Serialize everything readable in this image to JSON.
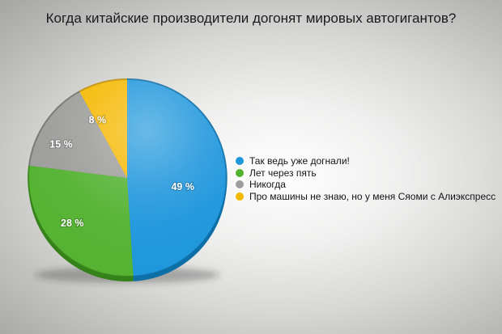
{
  "chart_data": {
    "type": "pie",
    "title": "Когда китайские производители догонят мировых автогигантов?",
    "unit": "%",
    "total": 100,
    "start_angle_deg": 0,
    "direction": "clockwise",
    "legend_position": "right",
    "slices": [
      {
        "label": "Так ведь уже догнали!",
        "value": 49,
        "display": "49 %",
        "color": "#1e96dc",
        "dark": "#0d6fa6",
        "label_frac": 0.275,
        "label_r": 0.57
      },
      {
        "label": "Лет через пять",
        "value": 28,
        "display": "28 %",
        "color": "#54b231",
        "dark": "#35821a",
        "label_frac": 0.64,
        "label_r": 0.72
      },
      {
        "label": "Никогда",
        "value": 15,
        "display": "15 %",
        "color": "#9d9d9b",
        "dark": "#6e6e6c",
        "label_frac": 0.825,
        "label_r": 0.75
      },
      {
        "label": "Про машины не знаю, но у меня Сяоми с Алиэкспресс",
        "value": 8,
        "display": "8 %",
        "color": "#f5b800",
        "dark": "#bd8c00",
        "label_frac": 0.925,
        "label_r": 0.66
      }
    ]
  }
}
